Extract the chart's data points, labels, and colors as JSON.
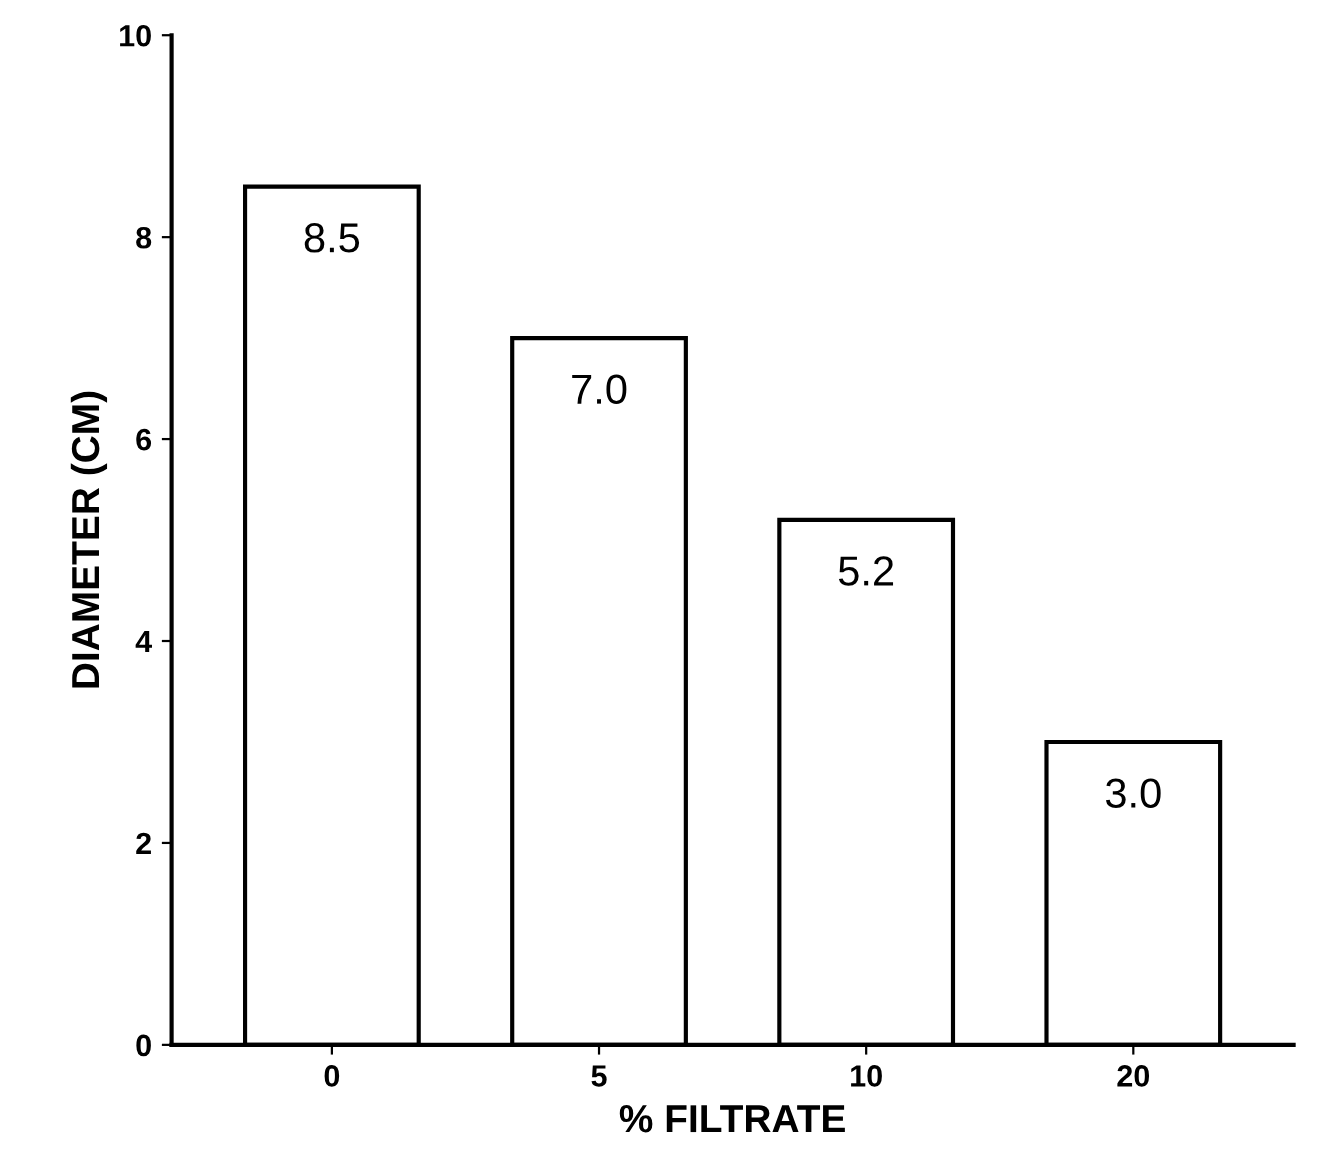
{
  "chart_data": {
    "type": "bar",
    "xlabel": "% FILTRATE",
    "ylabel": "DIAMETER (CM)",
    "categories": [
      "0",
      "5",
      "10",
      "20"
    ],
    "values": [
      8.5,
      7.0,
      5.2,
      3.0
    ],
    "color": "#ffffff",
    "value_labels": [
      "8.5",
      "7.0",
      "5.2",
      "3.0"
    ],
    "ylim": [
      0,
      10
    ],
    "yticks": [
      0,
      2,
      4,
      6,
      8,
      10
    ],
    "grid": false
  }
}
